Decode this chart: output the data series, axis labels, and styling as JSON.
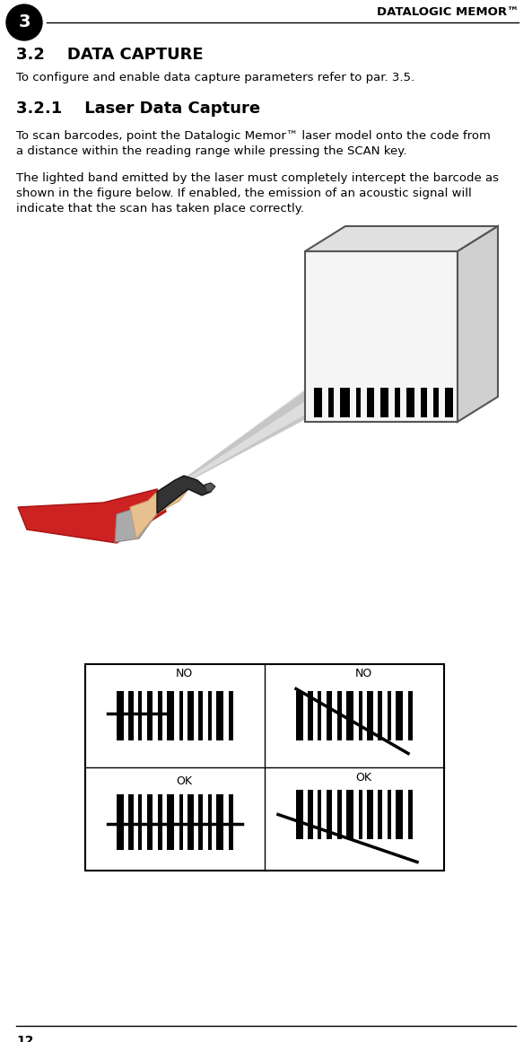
{
  "header_text": "DATALOGIC MEMOR™",
  "chapter_num": "3",
  "section_title": "3.2    DATA CAPTURE",
  "section_intro": "To configure and enable data capture parameters refer to par. 3.5.",
  "subsection_title": "3.2.1    Laser Data Capture",
  "para1_lines": [
    "To scan barcodes, point the Datalogic Memor™ laser model onto the code from",
    "a distance within the reading range while pressing the SCAN key."
  ],
  "para2_lines": [
    "The lighted band emitted by the laser must completely intercept the barcode as",
    "shown in the figure below. If enabled, the emission of an acoustic signal will",
    "indicate that the scan has taken place correctly."
  ],
  "page_num": "12",
  "bg_color": "#ffffff",
  "text_color": "#000000"
}
